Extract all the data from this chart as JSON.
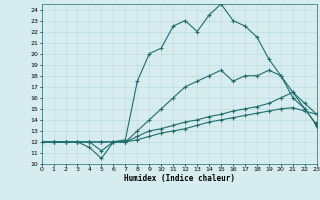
{
  "xlabel": "Humidex (Indice chaleur)",
  "xlim": [
    0,
    23
  ],
  "ylim": [
    10,
    24.5
  ],
  "xticks": [
    0,
    1,
    2,
    3,
    4,
    5,
    6,
    7,
    8,
    9,
    10,
    11,
    12,
    13,
    14,
    15,
    16,
    17,
    18,
    19,
    20,
    21,
    22,
    23
  ],
  "yticks": [
    10,
    11,
    12,
    13,
    14,
    15,
    16,
    17,
    18,
    19,
    20,
    21,
    22,
    23,
    24
  ],
  "bg_color": "#d6ecee",
  "grid_color": "#b8d8db",
  "line_color": "#1e6e6e",
  "series1_x": [
    0,
    1,
    2,
    3,
    4,
    5,
    6,
    7,
    8,
    9,
    10,
    11,
    12,
    13,
    14,
    15,
    16,
    17,
    18,
    19,
    20,
    21,
    22,
    23
  ],
  "series1_y": [
    12,
    12,
    12,
    12,
    12,
    11.2,
    12,
    12.2,
    17.5,
    20,
    20.5,
    22.5,
    23,
    22,
    23.5,
    24.5,
    23,
    22.5,
    21.5,
    19.5,
    18,
    16.5,
    15,
    13.5
  ],
  "series2_x": [
    0,
    1,
    2,
    3,
    4,
    5,
    6,
    7,
    8,
    9,
    10,
    11,
    12,
    13,
    14,
    15,
    16,
    17,
    18,
    19,
    20,
    21,
    22,
    23
  ],
  "series2_y": [
    12,
    12,
    12,
    12,
    11.5,
    10.5,
    12,
    12,
    13,
    14,
    15,
    16,
    17,
    17.5,
    18,
    18.5,
    17.5,
    18,
    18,
    18.5,
    18,
    16,
    15,
    13.5
  ],
  "series3_x": [
    0,
    1,
    2,
    3,
    4,
    5,
    6,
    7,
    8,
    9,
    10,
    11,
    12,
    13,
    14,
    15,
    16,
    17,
    18,
    19,
    20,
    21,
    22,
    23
  ],
  "series3_y": [
    12,
    12,
    12,
    12,
    12,
    12,
    12,
    12,
    12.5,
    13,
    13.2,
    13.5,
    13.8,
    14,
    14.3,
    14.5,
    14.8,
    15,
    15.2,
    15.5,
    16,
    16.5,
    15.5,
    14.5
  ],
  "series4_x": [
    0,
    1,
    2,
    3,
    4,
    5,
    6,
    7,
    8,
    9,
    10,
    11,
    12,
    13,
    14,
    15,
    16,
    17,
    18,
    19,
    20,
    21,
    22,
    23
  ],
  "series4_y": [
    12,
    12,
    12,
    12,
    12,
    12,
    12,
    12,
    12.2,
    12.5,
    12.8,
    13,
    13.2,
    13.5,
    13.8,
    14,
    14.2,
    14.4,
    14.6,
    14.8,
    15,
    15.1,
    14.8,
    14.5
  ],
  "tri_x": 23,
  "tri_y": 13.5
}
